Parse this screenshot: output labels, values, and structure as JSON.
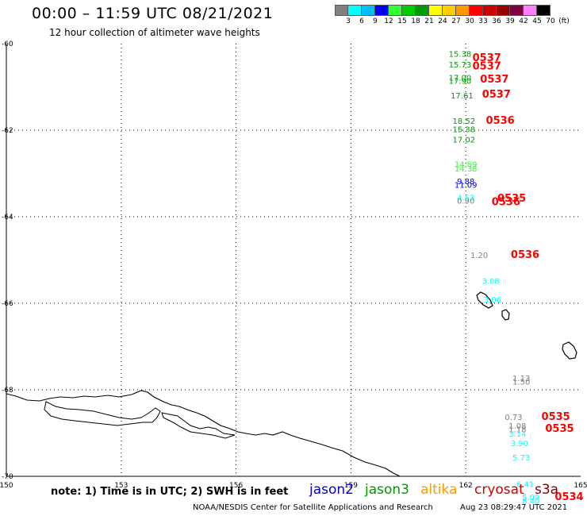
{
  "header": {
    "title": "00:00 – 11:59 UTC 08/21/2021",
    "subtitle": "12 hour collection of altimeter wave heights"
  },
  "legend": {
    "labels": [
      "3",
      "6",
      "9",
      "12",
      "15",
      "18",
      "21",
      "24",
      "27",
      "30",
      "33",
      "36",
      "39",
      "42",
      "45",
      "70",
      "(ft)"
    ],
    "colors": [
      "#808080",
      "#00ffff",
      "#00bfff",
      "#0000ff",
      "#33ff33",
      "#00cc00",
      "#009900",
      "#ffff00",
      "#ffcc00",
      "#ff9900",
      "#ff0000",
      "#cc0000",
      "#990000",
      "#800040",
      "#ff80ff",
      "#000000"
    ]
  },
  "axes": {
    "x_ticks": [
      "150",
      "153",
      "156",
      "159",
      "162",
      "165"
    ],
    "y_ticks": [
      "-60",
      "-62",
      "-64",
      "-66",
      "-68",
      "-70"
    ]
  },
  "chart_data": {
    "type": "scatter",
    "xlim": [
      150,
      165
    ],
    "ylim": [
      -70,
      -60
    ],
    "points": [
      {
        "lon": 161.85,
        "lat": -60.3,
        "label": "15.38",
        "color": "#009900"
      },
      {
        "lon": 162.55,
        "lat": -60.4,
        "label": "0537",
        "color": "#ff0000"
      },
      {
        "lon": 161.85,
        "lat": -60.55,
        "label": "15.73",
        "color": "#009900"
      },
      {
        "lon": 162.55,
        "lat": -60.6,
        "label": "0537",
        "color": "#ff0000"
      },
      {
        "lon": 161.85,
        "lat": -60.85,
        "label": "17.00",
        "color": "#009900"
      },
      {
        "lon": 161.85,
        "lat": -60.93,
        "label": "17.90",
        "color": "#009900"
      },
      {
        "lon": 162.75,
        "lat": -60.9,
        "label": "0537",
        "color": "#ff0000"
      },
      {
        "lon": 161.9,
        "lat": -61.27,
        "label": "17.61",
        "color": "#009900"
      },
      {
        "lon": 162.8,
        "lat": -61.25,
        "label": "0537",
        "color": "#ff0000"
      },
      {
        "lon": 161.95,
        "lat": -61.85,
        "label": "18.52",
        "color": "#009900"
      },
      {
        "lon": 162.9,
        "lat": -61.85,
        "label": "0536",
        "color": "#ff0000"
      },
      {
        "lon": 161.95,
        "lat": -62.05,
        "label": "15.38",
        "color": "#009900"
      },
      {
        "lon": 161.95,
        "lat": -62.28,
        "label": "17.02",
        "color": "#009900"
      },
      {
        "lon": 162.0,
        "lat": -62.85,
        "label": "14.89",
        "color": "#33ff33"
      },
      {
        "lon": 162.0,
        "lat": -62.95,
        "label": "14.38",
        "color": "#33ff33"
      },
      {
        "lon": 162.0,
        "lat": -63.25,
        "label": "9.88",
        "color": "#0000ff"
      },
      {
        "lon": 162.0,
        "lat": -63.33,
        "label": "11.09",
        "color": "#0000ff"
      },
      {
        "lon": 162.0,
        "lat": -63.62,
        "label": "4.53",
        "color": "#00ffff"
      },
      {
        "lon": 162.0,
        "lat": -63.7,
        "label": "0.90",
        "color": "#808080"
      },
      {
        "lon": 163.2,
        "lat": -63.65,
        "label": "0535",
        "color": "#ff0000"
      },
      {
        "lon": 163.05,
        "lat": -63.73,
        "label": "0536",
        "color": "#ff0000"
      },
      {
        "lon": 162.35,
        "lat": -64.95,
        "label": "1.20",
        "color": "#808080"
      },
      {
        "lon": 163.55,
        "lat": -64.95,
        "label": "0536",
        "color": "#ff0000"
      },
      {
        "lon": 162.65,
        "lat": -65.55,
        "label": "3.08",
        "color": "#00ffff"
      },
      {
        "lon": 162.7,
        "lat": -65.98,
        "label": "3.06",
        "color": "#00ffff"
      },
      {
        "lon": 163.45,
        "lat": -67.8,
        "label": "1.13",
        "color": "#808080"
      },
      {
        "lon": 163.45,
        "lat": -67.88,
        "label": "1.50",
        "color": "#808080"
      },
      {
        "lon": 163.25,
        "lat": -68.7,
        "label": "0.73",
        "color": "#808080"
      },
      {
        "lon": 164.35,
        "lat": -68.7,
        "label": "0535",
        "color": "#ff0000"
      },
      {
        "lon": 163.35,
        "lat": -68.9,
        "label": "1.08",
        "color": "#808080"
      },
      {
        "lon": 163.35,
        "lat": -68.98,
        "label": "1.18",
        "color": "#808080"
      },
      {
        "lon": 163.35,
        "lat": -69.08,
        "label": "3.14",
        "color": "#00ffff"
      },
      {
        "lon": 164.45,
        "lat": -68.97,
        "label": "0535",
        "color": "#ff0000"
      },
      {
        "lon": 163.4,
        "lat": -69.3,
        "label": "3.90",
        "color": "#00ffff"
      },
      {
        "lon": 163.45,
        "lat": -69.63,
        "label": "5.73",
        "color": "#00ffff"
      },
      {
        "lon": 163.55,
        "lat": -70.25,
        "label": "6.41",
        "color": "#00ffff"
      },
      {
        "lon": 163.7,
        "lat": -70.55,
        "label": "5.09",
        "color": "#00ffff"
      },
      {
        "lon": 163.7,
        "lat": -70.63,
        "label": "8.40",
        "color": "#00ffff"
      },
      {
        "lon": 164.7,
        "lat": -70.55,
        "label": "0534",
        "color": "#ff0000"
      }
    ]
  },
  "footer": {
    "note": "note: 1) Time is in UTC; 2) SWH is in feet",
    "missions": [
      {
        "name": "jason2",
        "color": "#0000cc"
      },
      {
        "name": "jason3",
        "color": "#009900"
      },
      {
        "name": "altika",
        "color": "#ff9900"
      },
      {
        "name": "cryosat",
        "color": "#cc0000"
      },
      {
        "name": "s3a",
        "color": "#800000"
      }
    ],
    "credit": "NOAA/NESDIS Center for Satellite Applications and Research",
    "timestamp": "Aug 23 08:29:47 UTC 2021"
  }
}
